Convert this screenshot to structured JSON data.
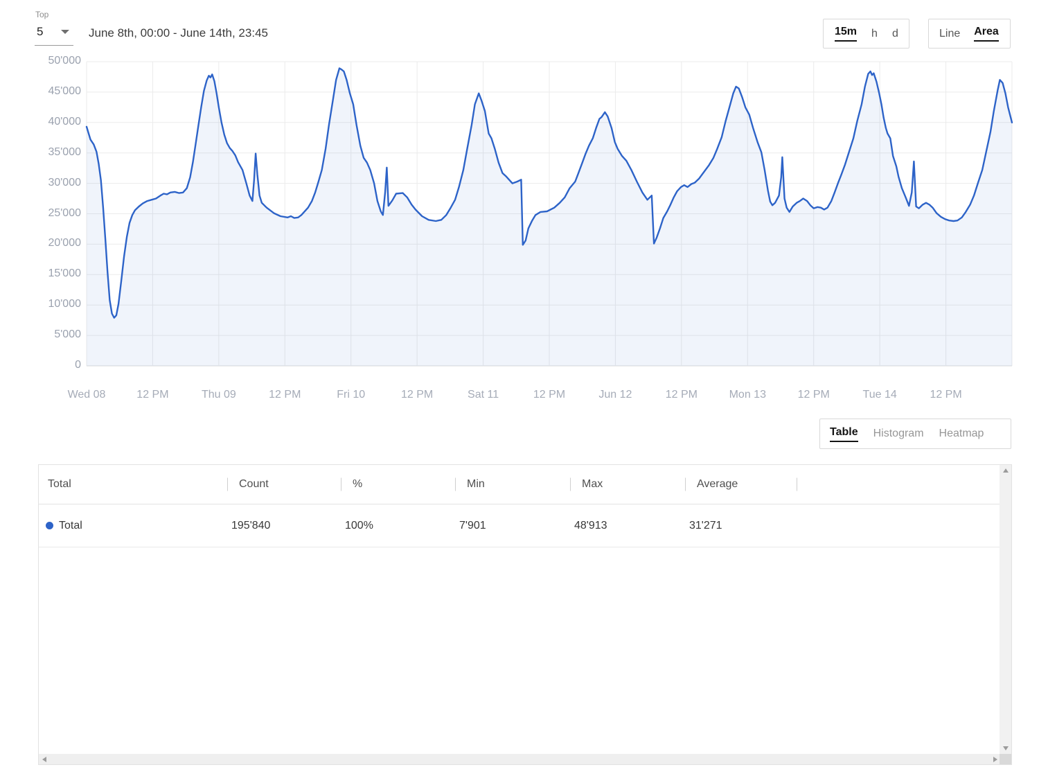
{
  "header": {
    "top_label": "Top",
    "top_value": "5",
    "date_range": "June 8th, 00:00 - June 14th, 23:45",
    "granularity": {
      "options": [
        "15m",
        "h",
        "d"
      ],
      "selected": "15m"
    },
    "chart_type": {
      "options": [
        "Line",
        "Area"
      ],
      "selected": "Area"
    }
  },
  "view_tabs": {
    "options": [
      "Table",
      "Histogram",
      "Heatmap"
    ],
    "selected": "Table"
  },
  "table": {
    "columns": [
      "Total",
      "Count",
      "%",
      "Min",
      "Max",
      "Average"
    ],
    "rows": [
      {
        "label": "Total",
        "dot_color": "#2d63c8",
        "count": "195'840",
        "percent": "100%",
        "min": "7'901",
        "max": "48'913",
        "average": "31'271"
      }
    ]
  },
  "colors": {
    "line": "#2d63c8",
    "area_fill": "rgba(45,99,200,0.07)",
    "grid": "#ebebeb",
    "axis_bottom": "#d9d9d9",
    "tick_text": "#a0a7b3"
  },
  "chart_data": {
    "type": "area",
    "title": "",
    "xlabel": "",
    "ylabel": "",
    "x_unit": "hours since June 8th 00:00 (15m samples)",
    "x_range": [
      0,
      168
    ],
    "y_range": [
      0,
      50000
    ],
    "grid": true,
    "legend_position": "none",
    "y_ticks": [
      {
        "value": 0,
        "label": "0"
      },
      {
        "value": 5000,
        "label": "5'000"
      },
      {
        "value": 10000,
        "label": "10'000"
      },
      {
        "value": 15000,
        "label": "15'000"
      },
      {
        "value": 20000,
        "label": "20'000"
      },
      {
        "value": 25000,
        "label": "25'000"
      },
      {
        "value": 30000,
        "label": "30'000"
      },
      {
        "value": 35000,
        "label": "35'000"
      },
      {
        "value": 40000,
        "label": "40'000"
      },
      {
        "value": 45000,
        "label": "45'000"
      },
      {
        "value": 50000,
        "label": "50'000"
      }
    ],
    "x_ticks": [
      {
        "t": 0,
        "label": "Wed 08"
      },
      {
        "t": 12,
        "label": "12 PM"
      },
      {
        "t": 24,
        "label": "Thu 09"
      },
      {
        "t": 36,
        "label": "12 PM"
      },
      {
        "t": 48,
        "label": "Fri 10"
      },
      {
        "t": 60,
        "label": "12 PM"
      },
      {
        "t": 72,
        "label": "Sat 11"
      },
      {
        "t": 84,
        "label": "12 PM"
      },
      {
        "t": 96,
        "label": "Jun 12"
      },
      {
        "t": 108,
        "label": "12 PM"
      },
      {
        "t": 120,
        "label": "Mon 13"
      },
      {
        "t": 132,
        "label": "12 PM"
      },
      {
        "t": 144,
        "label": "Tue 14"
      },
      {
        "t": 156,
        "label": "12 PM"
      }
    ],
    "x_gridlines": [
      0,
      12,
      24,
      36,
      48,
      60,
      72,
      84,
      96,
      108,
      120,
      132,
      144,
      156,
      168
    ],
    "series": [
      {
        "name": "Total",
        "color": "#2d63c8",
        "stats": {
          "count": 195840,
          "percent": 100,
          "min": 7901,
          "max": 48913,
          "average": 31271
        },
        "points": [
          [
            0,
            39300
          ],
          [
            0.7,
            37200
          ],
          [
            1.3,
            36400
          ],
          [
            1.8,
            35200
          ],
          [
            2.2,
            33200
          ],
          [
            2.6,
            30500
          ],
          [
            3,
            26000
          ],
          [
            3.4,
            21000
          ],
          [
            3.8,
            15500
          ],
          [
            4.2,
            10800
          ],
          [
            4.6,
            8600
          ],
          [
            5,
            7901
          ],
          [
            5.4,
            8300
          ],
          [
            5.8,
            10200
          ],
          [
            6.3,
            14000
          ],
          [
            6.8,
            18000
          ],
          [
            7.3,
            21200
          ],
          [
            7.8,
            23500
          ],
          [
            8.3,
            24800
          ],
          [
            8.8,
            25600
          ],
          [
            9.5,
            26200
          ],
          [
            10.2,
            26700
          ],
          [
            11,
            27100
          ],
          [
            11.8,
            27300
          ],
          [
            12.6,
            27500
          ],
          [
            13.4,
            28000
          ],
          [
            14,
            28300
          ],
          [
            14.6,
            28200
          ],
          [
            15.2,
            28500
          ],
          [
            16,
            28600
          ],
          [
            16.8,
            28400
          ],
          [
            17.5,
            28500
          ],
          [
            18.2,
            29200
          ],
          [
            18.8,
            31000
          ],
          [
            19.3,
            33500
          ],
          [
            19.8,
            36500
          ],
          [
            20.3,
            39500
          ],
          [
            20.8,
            42500
          ],
          [
            21.3,
            45200
          ],
          [
            21.8,
            46900
          ],
          [
            22.2,
            47700
          ],
          [
            22.5,
            47400
          ],
          [
            22.8,
            47900
          ],
          [
            23.2,
            46800
          ],
          [
            23.6,
            44800
          ],
          [
            24,
            42500
          ],
          [
            24.5,
            40000
          ],
          [
            25,
            38000
          ],
          [
            25.5,
            36600
          ],
          [
            26,
            35800
          ],
          [
            26.5,
            35300
          ],
          [
            27,
            34600
          ],
          [
            27.5,
            33500
          ],
          [
            28.3,
            32200
          ],
          [
            29,
            30000
          ],
          [
            29.6,
            28000
          ],
          [
            30.1,
            27100
          ],
          [
            30.4,
            30500
          ],
          [
            30.7,
            34900
          ],
          [
            31,
            31500
          ],
          [
            31.4,
            28000
          ],
          [
            31.8,
            26800
          ],
          [
            32.7,
            26000
          ],
          [
            34,
            25100
          ],
          [
            35.2,
            24600
          ],
          [
            36.5,
            24400
          ],
          [
            37.1,
            24600
          ],
          [
            37.7,
            24300
          ],
          [
            38.4,
            24400
          ],
          [
            39,
            24800
          ],
          [
            40.2,
            26000
          ],
          [
            40.9,
            27100
          ],
          [
            41.5,
            28500
          ],
          [
            42.1,
            30300
          ],
          [
            42.7,
            32200
          ],
          [
            43.4,
            35700
          ],
          [
            44,
            39600
          ],
          [
            44.7,
            43600
          ],
          [
            45.3,
            47000
          ],
          [
            45.9,
            48913
          ],
          [
            46.3,
            48700
          ],
          [
            46.7,
            48400
          ],
          [
            47.2,
            47000
          ],
          [
            47.8,
            44800
          ],
          [
            48.4,
            43000
          ],
          [
            49,
            39600
          ],
          [
            49.7,
            36200
          ],
          [
            50.3,
            34200
          ],
          [
            50.9,
            33400
          ],
          [
            51.5,
            32200
          ],
          [
            52.2,
            30000
          ],
          [
            52.8,
            27100
          ],
          [
            53.4,
            25400
          ],
          [
            53.8,
            24800
          ],
          [
            54.2,
            28500
          ],
          [
            54.5,
            32600
          ],
          [
            54.8,
            26300
          ],
          [
            55.5,
            27200
          ],
          [
            56.2,
            28300
          ],
          [
            57.4,
            28400
          ],
          [
            58.2,
            27700
          ],
          [
            59,
            26500
          ],
          [
            59.7,
            25700
          ],
          [
            60.9,
            24600
          ],
          [
            62.1,
            24000
          ],
          [
            63.4,
            23800
          ],
          [
            64.4,
            24000
          ],
          [
            65.3,
            24800
          ],
          [
            66.1,
            26000
          ],
          [
            66.9,
            27300
          ],
          [
            67.6,
            29400
          ],
          [
            68.4,
            32200
          ],
          [
            69.1,
            35700
          ],
          [
            69.9,
            39600
          ],
          [
            70.5,
            43000
          ],
          [
            71.2,
            44800
          ],
          [
            71.7,
            43600
          ],
          [
            72.3,
            41900
          ],
          [
            73,
            38200
          ],
          [
            73.5,
            37400
          ],
          [
            74.1,
            35700
          ],
          [
            74.8,
            33400
          ],
          [
            75.5,
            31700
          ],
          [
            76.2,
            31100
          ],
          [
            77.3,
            30000
          ],
          [
            78.2,
            30300
          ],
          [
            78.9,
            30600
          ],
          [
            79.2,
            19900
          ],
          [
            79.7,
            20600
          ],
          [
            80.2,
            22600
          ],
          [
            80.9,
            23900
          ],
          [
            81.5,
            24800
          ],
          [
            82.4,
            25300
          ],
          [
            83.6,
            25400
          ],
          [
            84.9,
            26000
          ],
          [
            85.9,
            26800
          ],
          [
            86.8,
            27700
          ],
          [
            87.7,
            29200
          ],
          [
            88.7,
            30300
          ],
          [
            89.3,
            31700
          ],
          [
            90,
            33400
          ],
          [
            90.6,
            34900
          ],
          [
            91.2,
            36200
          ],
          [
            91.9,
            37400
          ],
          [
            92.5,
            39100
          ],
          [
            93.1,
            40600
          ],
          [
            93.5,
            40900
          ],
          [
            94.1,
            41700
          ],
          [
            94.6,
            41000
          ],
          [
            95.3,
            39100
          ],
          [
            95.9,
            36800
          ],
          [
            96.4,
            35700
          ],
          [
            97.2,
            34500
          ],
          [
            98,
            33700
          ],
          [
            98.9,
            32200
          ],
          [
            99.9,
            30300
          ],
          [
            100.9,
            28500
          ],
          [
            101.8,
            27300
          ],
          [
            102.6,
            28000
          ],
          [
            103,
            20100
          ],
          [
            103.5,
            21100
          ],
          [
            104.1,
            22600
          ],
          [
            104.7,
            24300
          ],
          [
            105.4,
            25400
          ],
          [
            106,
            26500
          ],
          [
            106.6,
            27700
          ],
          [
            107.2,
            28700
          ],
          [
            107.9,
            29400
          ],
          [
            108.5,
            29700
          ],
          [
            109.1,
            29400
          ],
          [
            109.8,
            29900
          ],
          [
            110.4,
            30100
          ],
          [
            111.2,
            30800
          ],
          [
            112.1,
            31900
          ],
          [
            113,
            33000
          ],
          [
            113.8,
            34200
          ],
          [
            114.5,
            35700
          ],
          [
            115.3,
            37600
          ],
          [
            116,
            40200
          ],
          [
            116.8,
            42800
          ],
          [
            117.4,
            44800
          ],
          [
            117.9,
            45900
          ],
          [
            118.4,
            45600
          ],
          [
            119,
            44200
          ],
          [
            119.6,
            42500
          ],
          [
            120.3,
            41300
          ],
          [
            121,
            39100
          ],
          [
            121.8,
            36800
          ],
          [
            122.5,
            35100
          ],
          [
            123.1,
            32200
          ],
          [
            123.7,
            28800
          ],
          [
            124.1,
            27000
          ],
          [
            124.5,
            26400
          ],
          [
            125,
            26800
          ],
          [
            125.7,
            28000
          ],
          [
            126.1,
            31000
          ],
          [
            126.3,
            34300
          ],
          [
            126.7,
            27500
          ],
          [
            127.1,
            26000
          ],
          [
            127.6,
            25300
          ],
          [
            128.2,
            26200
          ],
          [
            128.9,
            26800
          ],
          [
            129.5,
            27100
          ],
          [
            130.1,
            27500
          ],
          [
            130.8,
            27100
          ],
          [
            131.4,
            26400
          ],
          [
            132,
            25900
          ],
          [
            132.7,
            26100
          ],
          [
            133.3,
            26000
          ],
          [
            133.9,
            25700
          ],
          [
            134.5,
            26000
          ],
          [
            135.2,
            27100
          ],
          [
            135.8,
            28500
          ],
          [
            136.4,
            30000
          ],
          [
            137,
            31400
          ],
          [
            137.7,
            33100
          ],
          [
            138.4,
            35100
          ],
          [
            139.2,
            37400
          ],
          [
            139.9,
            40200
          ],
          [
            140.7,
            43000
          ],
          [
            141.3,
            45900
          ],
          [
            141.9,
            48000
          ],
          [
            142.3,
            48400
          ],
          [
            142.6,
            47800
          ],
          [
            142.9,
            48100
          ],
          [
            143.4,
            46700
          ],
          [
            143.9,
            44800
          ],
          [
            144.3,
            43000
          ],
          [
            144.7,
            40800
          ],
          [
            145.1,
            39100
          ],
          [
            145.4,
            38200
          ],
          [
            145.9,
            37400
          ],
          [
            146.4,
            34500
          ],
          [
            147,
            32800
          ],
          [
            147.4,
            31100
          ],
          [
            148,
            29200
          ],
          [
            148.7,
            27700
          ],
          [
            149.3,
            26300
          ],
          [
            149.8,
            28500
          ],
          [
            150.2,
            33600
          ],
          [
            150.6,
            26200
          ],
          [
            151.1,
            25900
          ],
          [
            151.8,
            26500
          ],
          [
            152.4,
            26800
          ],
          [
            153,
            26500
          ],
          [
            153.6,
            26000
          ],
          [
            154.3,
            25100
          ],
          [
            155.1,
            24500
          ],
          [
            155.9,
            24100
          ],
          [
            156.6,
            23900
          ],
          [
            157.4,
            23800
          ],
          [
            158.1,
            23900
          ],
          [
            158.9,
            24400
          ],
          [
            159.6,
            25300
          ],
          [
            160.4,
            26500
          ],
          [
            161.1,
            28000
          ],
          [
            161.8,
            30000
          ],
          [
            162.6,
            32200
          ],
          [
            163.3,
            35100
          ],
          [
            164.1,
            38500
          ],
          [
            164.7,
            41900
          ],
          [
            165.4,
            45300
          ],
          [
            165.8,
            47000
          ],
          [
            166.3,
            46500
          ],
          [
            166.8,
            44800
          ],
          [
            167.3,
            42500
          ],
          [
            168,
            40000
          ]
        ]
      }
    ]
  }
}
